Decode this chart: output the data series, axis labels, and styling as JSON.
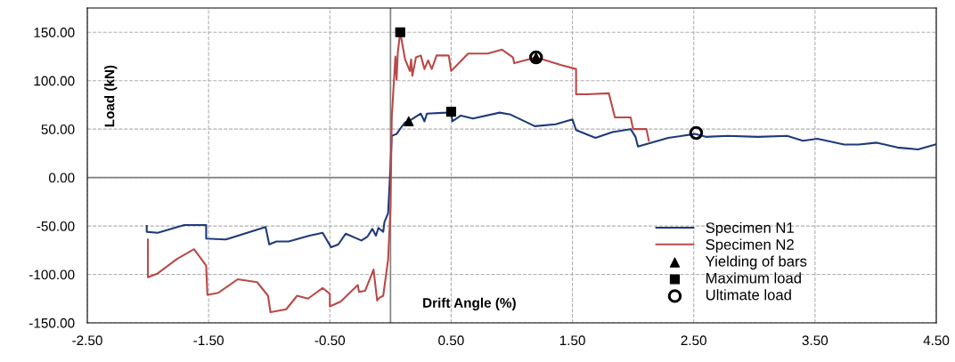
{
  "chart_data": {
    "type": "line",
    "xlabel": "Drift Angle (%)",
    "ylabel": "Load (kN)",
    "xlim": [
      -2.5,
      4.5
    ],
    "ylim": [
      -150,
      175
    ],
    "xticks": [
      {
        "value": -2.5,
        "label": "-2.50"
      },
      {
        "value": -1.5,
        "label": "-1.50"
      },
      {
        "value": -0.5,
        "label": "-0.50"
      },
      {
        "value": 0.5,
        "label": "0.50"
      },
      {
        "value": 1.5,
        "label": "1.50"
      },
      {
        "value": 2.5,
        "label": "2.50"
      },
      {
        "value": 3.5,
        "label": "3.50"
      },
      {
        "value": 4.5,
        "label": "4.50"
      }
    ],
    "yticks": [
      {
        "value": -150,
        "label": "-150.00"
      },
      {
        "value": -100,
        "label": "-100.00"
      },
      {
        "value": -50,
        "label": "-50.00"
      },
      {
        "value": 0,
        "label": "0.00"
      },
      {
        "value": 50,
        "label": "50.00"
      },
      {
        "value": 100,
        "label": "100.00"
      },
      {
        "value": 150,
        "label": "150.00"
      }
    ],
    "grid": true,
    "legend": "bottom right",
    "marker": "none",
    "line_style": "solid",
    "series": [
      {
        "name": "Specimen N1",
        "color": "#1f3a7a",
        "x": [
          -2.01,
          -2.01,
          -1.92,
          -1.7,
          -1.52,
          -1.52,
          -1.36,
          -1.03,
          -1.0,
          -0.94,
          -0.84,
          -0.67,
          -0.56,
          -0.49,
          -0.43,
          -0.37,
          -0.24,
          -0.19,
          -0.15,
          -0.12,
          -0.1,
          -0.06,
          -0.05,
          -0.02,
          -0.01,
          0.0,
          0.01,
          0.05,
          0.09,
          0.12,
          0.15,
          0.25,
          0.28,
          0.3,
          0.46,
          0.5,
          0.51,
          0.58,
          0.68,
          0.9,
          0.99,
          1.19,
          1.36,
          1.5,
          1.53,
          1.69,
          1.83,
          1.98,
          2.02,
          2.04,
          2.29,
          2.51,
          2.6,
          2.78,
          3.03,
          3.27,
          3.4,
          3.52,
          3.74,
          3.86,
          4.01,
          4.18,
          4.35,
          4.49
        ],
        "values": [
          -50,
          -56,
          -57,
          -49,
          -49,
          -63,
          -64,
          -51,
          -69,
          -66,
          -66,
          -60,
          -57,
          -72,
          -69,
          -58,
          -65,
          -61,
          -53,
          -60,
          -52,
          -56,
          -46,
          -37,
          -12,
          12,
          43,
          45,
          52,
          57,
          58,
          66,
          58,
          66,
          67,
          68,
          58,
          64,
          61,
          67,
          65,
          53,
          55,
          60,
          49,
          41,
          47,
          50,
          42,
          32,
          41,
          45,
          42,
          43,
          42,
          43,
          38,
          40,
          34,
          34,
          36,
          31,
          29,
          34
        ]
      },
      {
        "name": "Specimen N2",
        "color": "#b94a48",
        "x": [
          -2.0,
          -2.0,
          -1.92,
          -1.76,
          -1.62,
          -1.52,
          -1.51,
          -1.42,
          -1.26,
          -1.1,
          -1.01,
          -0.99,
          -0.86,
          -0.77,
          -0.68,
          -0.56,
          -0.5,
          -0.5,
          -0.41,
          -0.27,
          -0.26,
          -0.21,
          -0.14,
          -0.11,
          -0.09,
          -0.06,
          -0.02,
          0.0,
          0.01,
          0.04,
          0.05,
          0.06,
          0.08,
          0.12,
          0.16,
          0.17,
          0.18,
          0.21,
          0.25,
          0.28,
          0.31,
          0.34,
          0.38,
          0.48,
          0.5,
          0.64,
          0.8,
          0.92,
          1.01,
          1.02,
          1.2,
          1.41,
          1.53,
          1.53,
          1.62,
          1.8,
          1.85,
          1.98,
          2.0,
          2.11,
          2.13
        ],
        "values": [
          -64,
          -103,
          -99,
          -84,
          -74,
          -91,
          -121,
          -119,
          -105,
          -108,
          -122,
          -139,
          -136,
          -122,
          -125,
          -114,
          -120,
          -133,
          -128,
          -111,
          -118,
          -117,
          -95,
          -127,
          -124,
          -122,
          -85,
          -31,
          61,
          125,
          101,
          129,
          150,
          122,
          110,
          122,
          105,
          124,
          126,
          112,
          121,
          112,
          126,
          126,
          110,
          128,
          128,
          132,
          124,
          118,
          124,
          116,
          112,
          86,
          86,
          87,
          62,
          62,
          50,
          50,
          38
        ]
      },
      {
        "name": "Yielding of bars",
        "color": "#000000",
        "type": "scatter",
        "marker": "triangle",
        "x": [
          0.15,
          1.2
        ],
        "values": [
          58,
          124
        ]
      },
      {
        "name": "Maximum load",
        "color": "#000000",
        "type": "scatter",
        "marker": "square",
        "x": [
          0.08,
          0.5
        ],
        "values": [
          150,
          68
        ]
      },
      {
        "name": "Ultimate load",
        "color": "#000000",
        "type": "scatter",
        "marker": "circle",
        "x": [
          1.2,
          2.52
        ],
        "values": [
          124,
          46
        ]
      }
    ]
  }
}
